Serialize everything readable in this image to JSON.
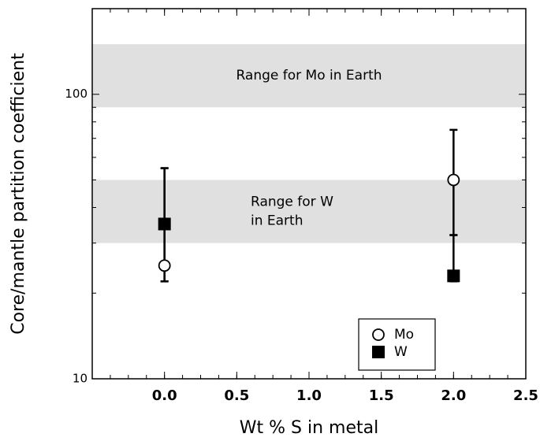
{
  "chart_data": {
    "type": "scatter",
    "xlabel": "Wt % S in metal",
    "ylabel": "Core/mantle partition coefficient",
    "xlim": [
      -0.5,
      2.5
    ],
    "xticks": [
      {
        "value": 0,
        "label": "0.0"
      },
      {
        "value": 0.5,
        "label": "0.5"
      },
      {
        "value": 1,
        "label": "1.0"
      },
      {
        "value": 1.5,
        "label": "1.5"
      },
      {
        "value": 2,
        "label": "2.0"
      },
      {
        "value": 2.5,
        "label": "2.5"
      }
    ],
    "ylim": [
      10,
      200
    ],
    "yticks": [
      10,
      100
    ],
    "log_y": true,
    "bands": [
      {
        "label": [
          "Range for Mo in Earth"
        ],
        "range": [
          90,
          150
        ],
        "color": "#e0e0e0"
      },
      {
        "label": [
          "Range for W",
          "in Earth"
        ],
        "range": [
          30,
          50
        ],
        "color": "#e0e0e0"
      }
    ],
    "legend": "lower right",
    "series": [
      {
        "name": "Mo",
        "marker": "circle",
        "color": "#ffffff",
        "x": [
          0,
          2
        ],
        "values": [
          25,
          50
        ],
        "error_low": [
          22,
          32
        ],
        "error_high": [
          55,
          75
        ]
      },
      {
        "name": "W",
        "marker": "square",
        "color": "#000000",
        "x": [
          0,
          2
        ],
        "values": [
          35,
          23
        ],
        "error_low": [
          22,
          22
        ],
        "error_high": [
          55,
          32
        ]
      }
    ]
  }
}
